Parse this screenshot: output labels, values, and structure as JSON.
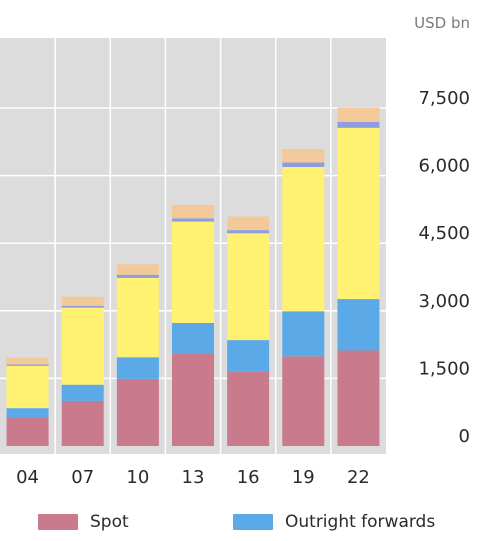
{
  "chart_data": {
    "type": "bar",
    "stacked": true,
    "unit_label": "USD bn",
    "categories": [
      "04",
      "07",
      "10",
      "13",
      "16",
      "19",
      "22"
    ],
    "series": [
      {
        "name": "Spot",
        "color": "#C97A8C",
        "values": [
          630,
          1000,
          1490,
          2050,
          1650,
          1990,
          2120
        ]
      },
      {
        "name": "Outright forwards",
        "color": "#5BA9E6",
        "values": [
          210,
          360,
          480,
          680,
          700,
          1000,
          1140
        ]
      },
      {
        "name": "",
        "color": "#FFF172",
        "values": [
          940,
          1710,
          1760,
          2250,
          2370,
          3200,
          3800
        ]
      },
      {
        "name": "",
        "color": "#8E9CE0",
        "values": [
          30,
          40,
          70,
          70,
          70,
          100,
          130
        ]
      },
      {
        "name": "",
        "color": "#F3C999",
        "values": [
          150,
          200,
          230,
          300,
          300,
          300,
          320
        ]
      }
    ],
    "y_ticks": [
      "0",
      "1,500",
      "3,000",
      "4,500",
      "6,000",
      "7,500"
    ],
    "y_tick_values": [
      0,
      1500,
      3000,
      4500,
      6000,
      7500
    ],
    "ylim": [
      0,
      8500
    ],
    "grid": true,
    "y_axis_position": "right",
    "legend_position": "bottom",
    "plot_background": "#DCDCDC",
    "grid_color": "#FFFFFF"
  },
  "legend": {
    "items": [
      {
        "label": "Spot",
        "color": "#C97A8C"
      },
      {
        "label": "Outright forwards",
        "color": "#5BA9E6"
      }
    ]
  }
}
